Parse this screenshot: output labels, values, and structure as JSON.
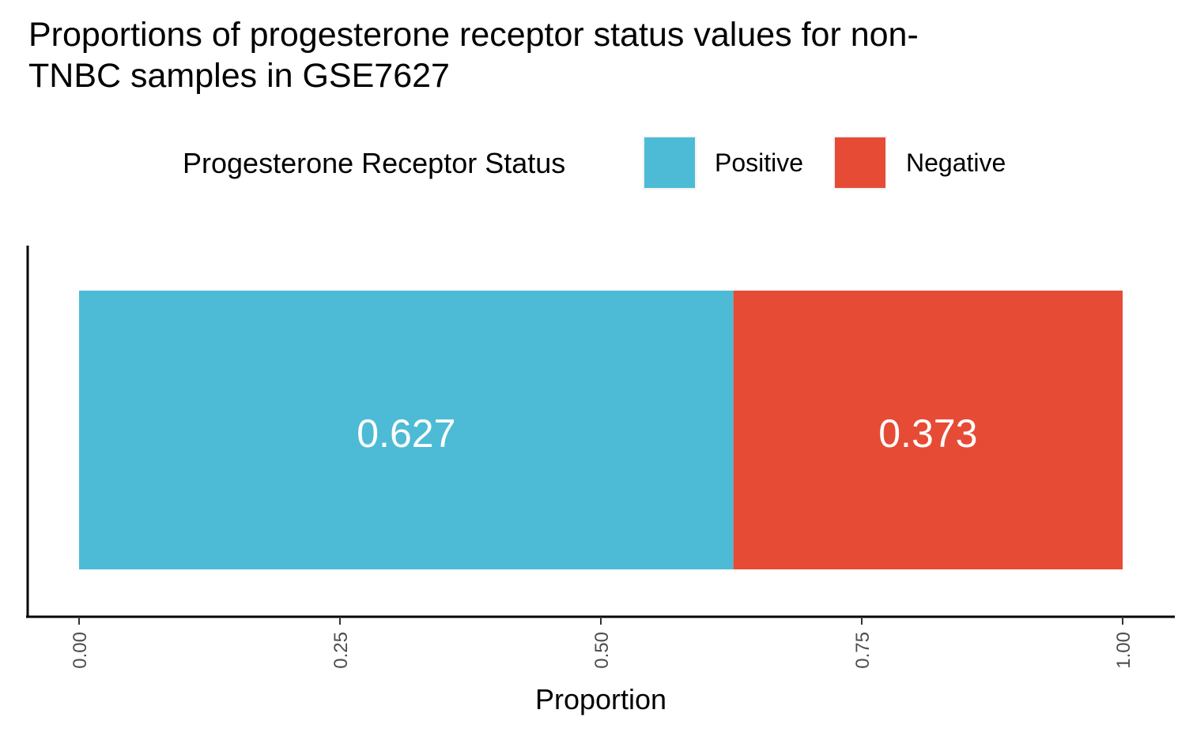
{
  "chart_data": {
    "type": "bar",
    "orientation": "horizontal",
    "stacked": true,
    "title": "Proportions of progesterone receptor status values for non-TNBC samples in GSE7627",
    "title_lines": [
      "Proportions of progesterone receptor status values for non-",
      "TNBC samples in GSE7627"
    ],
    "xlabel": "Proportion",
    "ylabel": "",
    "xlim": [
      0,
      1
    ],
    "x_ticks": [
      "0.00",
      "0.25",
      "0.50",
      "0.75",
      "1.00"
    ],
    "legend": {
      "title": "Progesterone Receptor Status",
      "position": "top"
    },
    "series": [
      {
        "name": "Positive",
        "value": 0.627,
        "label": "0.627",
        "color": "#4DBBD5"
      },
      {
        "name": "Negative",
        "value": 0.373,
        "label": "0.373",
        "color": "#E64B35"
      }
    ],
    "grid": false
  }
}
